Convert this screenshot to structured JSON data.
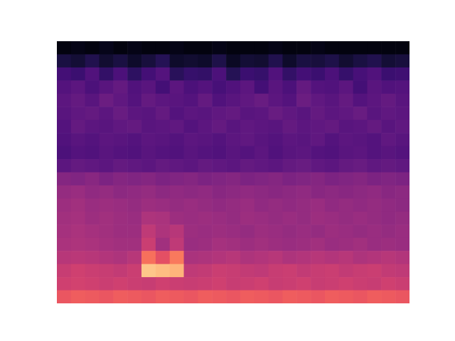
{
  "chart_data": {
    "type": "heatmap",
    "color": "magma",
    "zlim": [
      0,
      100
    ],
    "tick_labels": false,
    "cells": [
      [
        3,
        4,
        3,
        5,
        3,
        4,
        3,
        3,
        4,
        3,
        3,
        4,
        3,
        3,
        3,
        4,
        3,
        3,
        4,
        3,
        3,
        3,
        3,
        3,
        3
      ],
      [
        12,
        10,
        14,
        9,
        12,
        8,
        11,
        15,
        8,
        9,
        8,
        13,
        7,
        10,
        9,
        14,
        8,
        12,
        11,
        13,
        9,
        12,
        14,
        10,
        11
      ],
      [
        22,
        20,
        25,
        18,
        24,
        17,
        22,
        26,
        16,
        19,
        18,
        24,
        15,
        20,
        19,
        25,
        18,
        22,
        20,
        24,
        19,
        23,
        25,
        20,
        21
      ],
      [
        26,
        28,
        24,
        27,
        30,
        25,
        27,
        22,
        28,
        24,
        26,
        23,
        25,
        28,
        22,
        27,
        24,
        30,
        26,
        25,
        28,
        22,
        27,
        25,
        26
      ],
      [
        28,
        30,
        27,
        32,
        29,
        26,
        30,
        28,
        27,
        26,
        30,
        25,
        27,
        29,
        31,
        28,
        26,
        32,
        29,
        27,
        30,
        26,
        28,
        30,
        27
      ],
      [
        27,
        29,
        30,
        28,
        31,
        28,
        27,
        30,
        26,
        28,
        27,
        29,
        30,
        27,
        28,
        31,
        29,
        27,
        30,
        28,
        29,
        31,
        27,
        29,
        28
      ],
      [
        26,
        30,
        28,
        27,
        29,
        30,
        27,
        28,
        29,
        26,
        28,
        30,
        27,
        29,
        28,
        27,
        30,
        28,
        29,
        30,
        27,
        28,
        30,
        27,
        29
      ],
      [
        25,
        27,
        26,
        28,
        27,
        26,
        28,
        27,
        26,
        28,
        27,
        26,
        28,
        29,
        27,
        26,
        28,
        27,
        29,
        26,
        28,
        27,
        26,
        29,
        27
      ],
      [
        24,
        26,
        25,
        27,
        26,
        25,
        27,
        26,
        25,
        27,
        26,
        25,
        27,
        26,
        28,
        25,
        27,
        28,
        26,
        25,
        27,
        28,
        26,
        27,
        26
      ],
      [
        28,
        30,
        29,
        28,
        30,
        29,
        28,
        30,
        29,
        28,
        30,
        29,
        28,
        30,
        29,
        28,
        30,
        31,
        29,
        28,
        30,
        31,
        29,
        30,
        29
      ],
      [
        38,
        37,
        39,
        36,
        38,
        37,
        38,
        36,
        37,
        38,
        36,
        37,
        38,
        36,
        37,
        38,
        36,
        37,
        38,
        36,
        37,
        38,
        36,
        37,
        36
      ],
      [
        42,
        43,
        41,
        42,
        40,
        41,
        42,
        40,
        41,
        40,
        41,
        39,
        40,
        41,
        40,
        39,
        40,
        41,
        39,
        40,
        39,
        40,
        41,
        39,
        40
      ],
      [
        44,
        45,
        43,
        44,
        43,
        42,
        44,
        43,
        42,
        43,
        42,
        41,
        42,
        43,
        41,
        42,
        41,
        42,
        43,
        41,
        42,
        41,
        42,
        41,
        40
      ],
      [
        45,
        46,
        44,
        45,
        44,
        43,
        48,
        47,
        44,
        43,
        44,
        43,
        42,
        44,
        43,
        42,
        43,
        42,
        44,
        43,
        42,
        43,
        42,
        41,
        42
      ],
      [
        46,
        47,
        46,
        45,
        44,
        44,
        52,
        48,
        50,
        44,
        43,
        44,
        43,
        42,
        44,
        43,
        42,
        43,
        42,
        44,
        43,
        42,
        43,
        42,
        43
      ],
      [
        47,
        48,
        47,
        46,
        45,
        45,
        55,
        45,
        52,
        43,
        44,
        46,
        45,
        44,
        45,
        44,
        43,
        44,
        45,
        43,
        44,
        45,
        43,
        44,
        43
      ],
      [
        50,
        51,
        50,
        49,
        48,
        50,
        70,
        62,
        72,
        47,
        48,
        49,
        50,
        48,
        49,
        50,
        48,
        49,
        50,
        49,
        50,
        48,
        49,
        50,
        49
      ],
      [
        54,
        56,
        55,
        54,
        53,
        55,
        88,
        86,
        84,
        52,
        53,
        55,
        54,
        53,
        52,
        54,
        55,
        53,
        54,
        55,
        53,
        54,
        55,
        53,
        52
      ],
      [
        56,
        57,
        56,
        55,
        56,
        55,
        54,
        56,
        55,
        54,
        55,
        56,
        54,
        55,
        56,
        54,
        55,
        56,
        54,
        55,
        56,
        55,
        54,
        56,
        55
      ],
      [
        64,
        66,
        65,
        64,
        66,
        65,
        64,
        66,
        65,
        64,
        66,
        65,
        64,
        66,
        65,
        64,
        66,
        65,
        64,
        66,
        65,
        64,
        66,
        65,
        64
      ]
    ]
  }
}
